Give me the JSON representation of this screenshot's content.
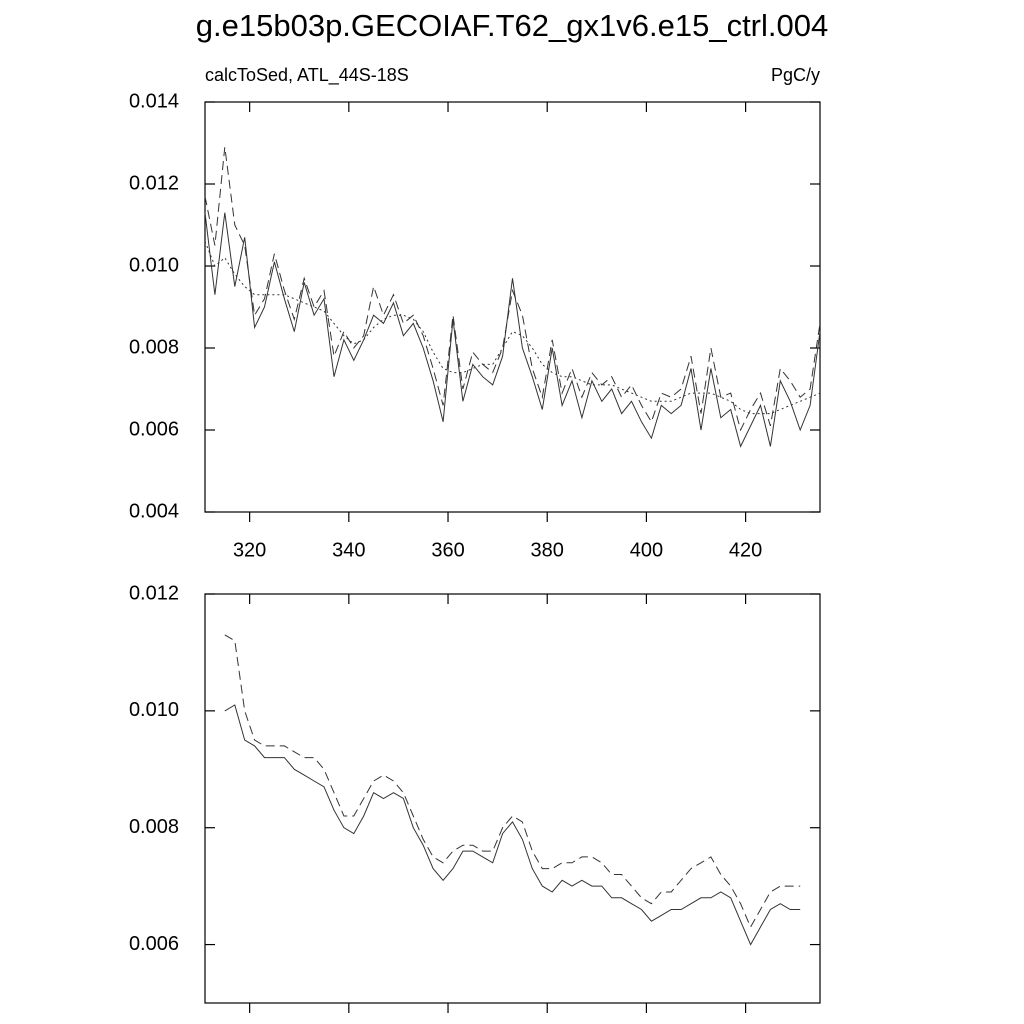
{
  "title": "g.e15b03p.GECOIAF.T62_gx1v6.e15_ctrl.004",
  "chart_data": [
    {
      "type": "line",
      "subtitle": "calcToSed, ATL_44S-18S",
      "units": "PgC/y",
      "x": [
        311,
        313,
        315,
        317,
        319,
        321,
        323,
        325,
        327,
        329,
        331,
        333,
        335,
        337,
        339,
        341,
        343,
        345,
        347,
        349,
        351,
        353,
        355,
        357,
        359,
        361,
        363,
        365,
        367,
        369,
        371,
        373,
        375,
        377,
        379,
        381,
        383,
        385,
        387,
        389,
        391,
        393,
        395,
        397,
        399,
        401,
        403,
        405,
        407,
        409,
        411,
        413,
        415,
        417,
        419,
        421,
        423,
        425,
        427,
        429,
        431,
        433,
        435
      ],
      "series": [
        {
          "color": "#333333",
          "dash": "solid",
          "values": [
            0.0113,
            0.0093,
            0.0113,
            0.0095,
            0.0107,
            0.0085,
            0.009,
            0.0101,
            0.0092,
            0.0084,
            0.0096,
            0.0088,
            0.0092,
            0.0073,
            0.0082,
            0.0077,
            0.0082,
            0.0088,
            0.0086,
            0.0091,
            0.0083,
            0.0086,
            0.008,
            0.0072,
            0.0062,
            0.0087,
            0.0067,
            0.0076,
            0.0073,
            0.0071,
            0.0078,
            0.0097,
            0.008,
            0.0073,
            0.0065,
            0.008,
            0.0066,
            0.0072,
            0.0063,
            0.0072,
            0.0067,
            0.007,
            0.0064,
            0.0067,
            0.0062,
            0.0058,
            0.0066,
            0.0064,
            0.0066,
            0.0075,
            0.006,
            0.0075,
            0.0063,
            0.0065,
            0.0056,
            0.0061,
            0.0066,
            0.0056,
            0.0072,
            0.0067,
            0.006,
            0.0066,
            0.0084
          ]
        },
        {
          "color": "#333333",
          "dash": "dashed",
          "values": [
            0.0117,
            0.0105,
            0.0129,
            0.011,
            0.0105,
            0.0088,
            0.0092,
            0.0103,
            0.0094,
            0.0087,
            0.0097,
            0.009,
            0.0094,
            0.0078,
            0.0084,
            0.008,
            0.0083,
            0.0095,
            0.0088,
            0.0093,
            0.0086,
            0.0088,
            0.0083,
            0.0075,
            0.0066,
            0.0088,
            0.007,
            0.0079,
            0.0076,
            0.0074,
            0.008,
            0.0094,
            0.0088,
            0.0075,
            0.0068,
            0.0082,
            0.0069,
            0.0075,
            0.0068,
            0.0074,
            0.0071,
            0.0073,
            0.0068,
            0.0071,
            0.0066,
            0.0062,
            0.0069,
            0.0068,
            0.007,
            0.0078,
            0.0064,
            0.008,
            0.0068,
            0.0069,
            0.006,
            0.0065,
            0.0069,
            0.0061,
            0.0075,
            0.0072,
            0.0068,
            0.007,
            0.0086
          ]
        },
        {
          "color": "#333333",
          "dash": "dotted",
          "values": [
            0.0106,
            0.01,
            0.0102,
            0.0098,
            0.0095,
            0.0093,
            0.0093,
            0.0093,
            0.0093,
            0.0092,
            0.0091,
            0.009,
            0.0089,
            0.0086,
            0.0083,
            0.0081,
            0.0082,
            0.0085,
            0.0087,
            0.0088,
            0.0088,
            0.0087,
            0.0084,
            0.0079,
            0.0075,
            0.0074,
            0.0074,
            0.0075,
            0.0076,
            0.0076,
            0.008,
            0.0084,
            0.0083,
            0.008,
            0.0076,
            0.0074,
            0.0073,
            0.0073,
            0.0072,
            0.0071,
            0.0071,
            0.0071,
            0.007,
            0.0069,
            0.0068,
            0.0067,
            0.0067,
            0.0067,
            0.0068,
            0.0069,
            0.0069,
            0.0069,
            0.0068,
            0.0067,
            0.0065,
            0.0064,
            0.0064,
            0.0064,
            0.0065,
            0.0066,
            0.0067,
            0.0068,
            0.0069
          ]
        }
      ],
      "xlim": [
        311,
        435
      ],
      "xticks": [
        320,
        340,
        360,
        380,
        400,
        420
      ],
      "xtick_labels": true,
      "ylim": [
        0.004,
        0.014
      ],
      "yticks": [
        0.004,
        0.006,
        0.008,
        {
          "value": 0.01,
          "label": "0.010"
        },
        0.012,
        0.014
      ]
    },
    {
      "type": "line",
      "x": [
        315,
        317,
        319,
        321,
        323,
        325,
        327,
        329,
        331,
        333,
        335,
        337,
        339,
        341,
        343,
        345,
        347,
        349,
        351,
        353,
        355,
        357,
        359,
        361,
        363,
        365,
        367,
        369,
        371,
        373,
        375,
        377,
        379,
        381,
        383,
        385,
        387,
        389,
        391,
        393,
        395,
        397,
        399,
        401,
        403,
        405,
        407,
        409,
        411,
        413,
        415,
        417,
        419,
        421,
        423,
        425,
        427,
        429,
        431
      ],
      "series": [
        {
          "color": "#333333",
          "dash": "solid",
          "values": [
            0.01,
            0.0101,
            0.0095,
            0.0094,
            0.0092,
            0.0092,
            0.0092,
            0.009,
            0.0089,
            0.0088,
            0.0087,
            0.0083,
            0.008,
            0.0079,
            0.0082,
            0.0086,
            0.0085,
            0.0086,
            0.0085,
            0.008,
            0.0077,
            0.0073,
            0.0071,
            0.0073,
            0.0076,
            0.0076,
            0.0075,
            0.0074,
            0.0079,
            0.0081,
            0.0078,
            0.0073,
            0.007,
            0.0069,
            0.0071,
            0.007,
            0.0071,
            0.007,
            0.007,
            0.0068,
            0.0068,
            0.0067,
            0.0066,
            0.0064,
            0.0065,
            0.0066,
            0.0066,
            0.0067,
            0.0068,
            0.0068,
            0.0069,
            0.0068,
            0.0064,
            0.006,
            0.0063,
            0.0066,
            0.0067,
            0.0066,
            0.0066
          ]
        },
        {
          "color": "#333333",
          "dash": "dashed",
          "values": [
            0.0113,
            0.0112,
            0.01,
            0.0095,
            0.0094,
            0.0094,
            0.0094,
            0.0093,
            0.0092,
            0.0092,
            0.009,
            0.0086,
            0.0082,
            0.0082,
            0.0085,
            0.0088,
            0.0089,
            0.0088,
            0.0086,
            0.0082,
            0.0078,
            0.0075,
            0.0074,
            0.0076,
            0.0077,
            0.0077,
            0.0076,
            0.0076,
            0.008,
            0.0082,
            0.0081,
            0.0076,
            0.0073,
            0.0073,
            0.0074,
            0.0074,
            0.0075,
            0.0075,
            0.0074,
            0.0072,
            0.0072,
            0.007,
            0.0068,
            0.0067,
            0.0069,
            0.0069,
            0.0071,
            0.0073,
            0.0074,
            0.0075,
            0.0072,
            0.007,
            0.0067,
            0.0063,
            0.0066,
            0.0069,
            0.007,
            0.007,
            0.007
          ]
        }
      ],
      "xlim": [
        311,
        435
      ],
      "xticks": [
        320,
        340,
        360,
        380,
        400,
        420
      ],
      "xtick_labels": false,
      "ylim": [
        0.005,
        0.012
      ],
      "yticks": [
        0.006,
        0.008,
        {
          "value": 0.01,
          "label": "0.010"
        },
        0.012
      ]
    }
  ]
}
